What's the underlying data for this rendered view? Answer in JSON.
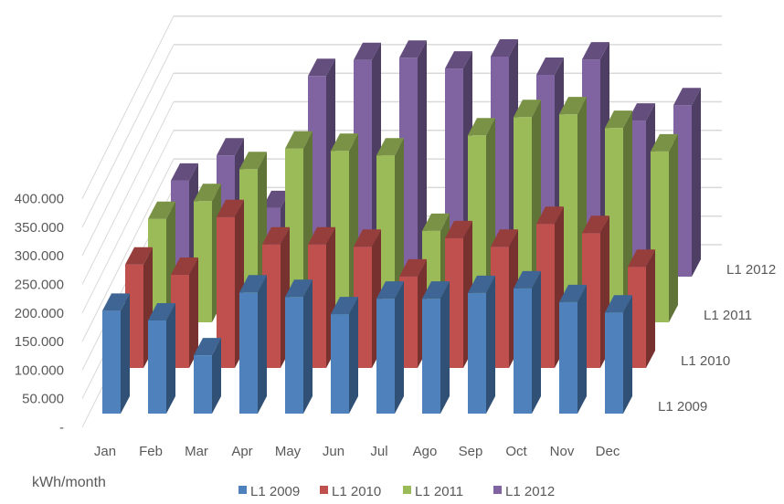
{
  "chart_data": {
    "type": "bar",
    "subtype": "3d-column",
    "title": "",
    "xlabel": "",
    "ylabel": "kWh/month",
    "categories": [
      "Jan",
      "Feb",
      "Mar",
      "Apr",
      "May",
      "Jun",
      "Jul",
      "Ago",
      "Sep",
      "Oct",
      "Nov",
      "Dec"
    ],
    "ylim": [
      0,
      400000
    ],
    "yticks": [
      "-",
      "50.000",
      "100.000",
      "150.000",
      "200.000",
      "250.000",
      "300.000",
      "350.000",
      "400.000"
    ],
    "grid": true,
    "legend": "bottom",
    "series": [
      {
        "name": "L1 2009",
        "color": "#4f81bd",
        "values": [
          180000,
          163000,
          102000,
          212000,
          204000,
          174000,
          201000,
          201000,
          211000,
          219000,
          195000,
          177000
        ]
      },
      {
        "name": "L1 2010",
        "color": "#c0504d",
        "values": [
          181000,
          163000,
          264000,
          216000,
          216000,
          212000,
          160000,
          227000,
          212000,
          252000,
          236000,
          177000
        ]
      },
      {
        "name": "L1 2011",
        "color": "#9bbb59",
        "values": [
          181000,
          212000,
          268000,
          304000,
          300000,
          292000,
          160000,
          327000,
          359000,
          364000,
          340000,
          299000
        ]
      },
      {
        "name": "L1 2012",
        "color": "#8064a2",
        "values": [
          168000,
          212000,
          120000,
          351000,
          379000,
          383000,
          364000,
          385000,
          353000,
          380000,
          273000,
          300000
        ]
      }
    ]
  }
}
